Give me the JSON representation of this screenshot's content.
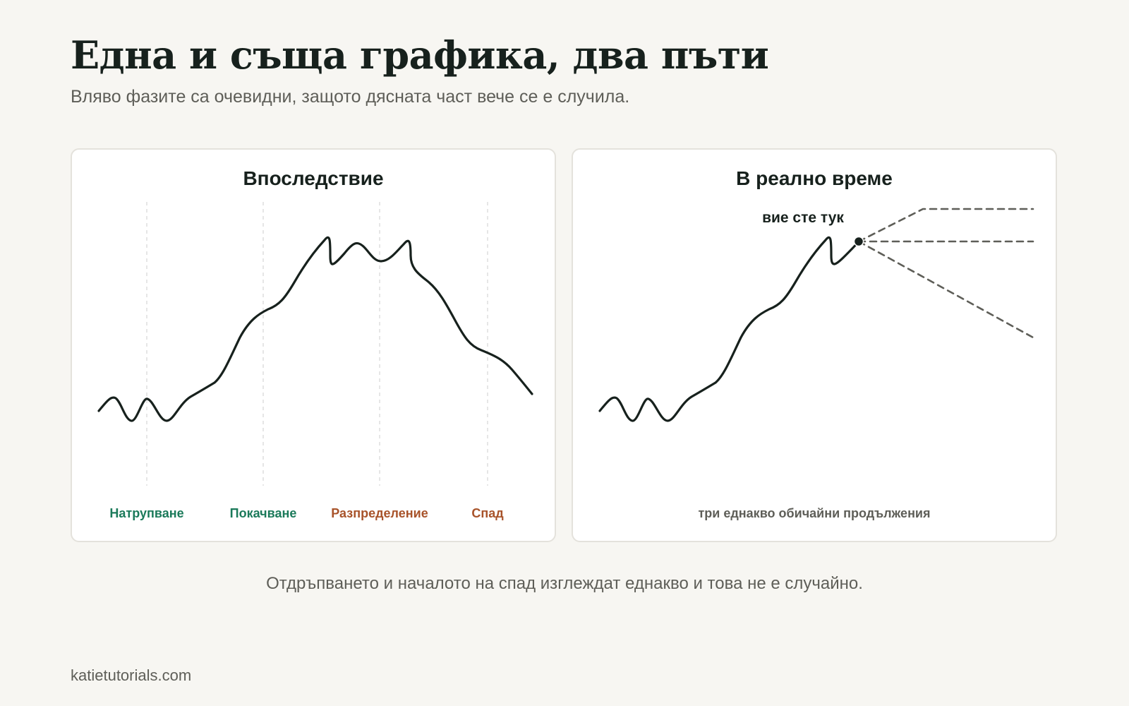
{
  "header": {
    "title": "Една и съща графика, два пъти",
    "subtitle": "Вляво фазите са очевидни, защото дясната част вече се е случила."
  },
  "left_panel": {
    "title": "Впоследствие",
    "phases": [
      {
        "label": "Натрупване",
        "color": "#1b7a5a"
      },
      {
        "label": "Покачване",
        "color": "#1b7a5a"
      },
      {
        "label": "Разпределение",
        "color": "#a8532a"
      },
      {
        "label": "Спад",
        "color": "#a8532a"
      }
    ]
  },
  "right_panel": {
    "title": "В реално време",
    "marker_label": "вие сте тук",
    "caption": "три еднакво обичайни продължения"
  },
  "bottom_note": "Отдръпването и началото на спад изглеждат еднакво и това не е случайно.",
  "footer": "katietutorials.com",
  "colors": {
    "background": "#f7f6f2",
    "panel": "#ffffff",
    "line": "#17211d",
    "dashed": "#5e5e58",
    "grid": "#dddddd"
  }
}
